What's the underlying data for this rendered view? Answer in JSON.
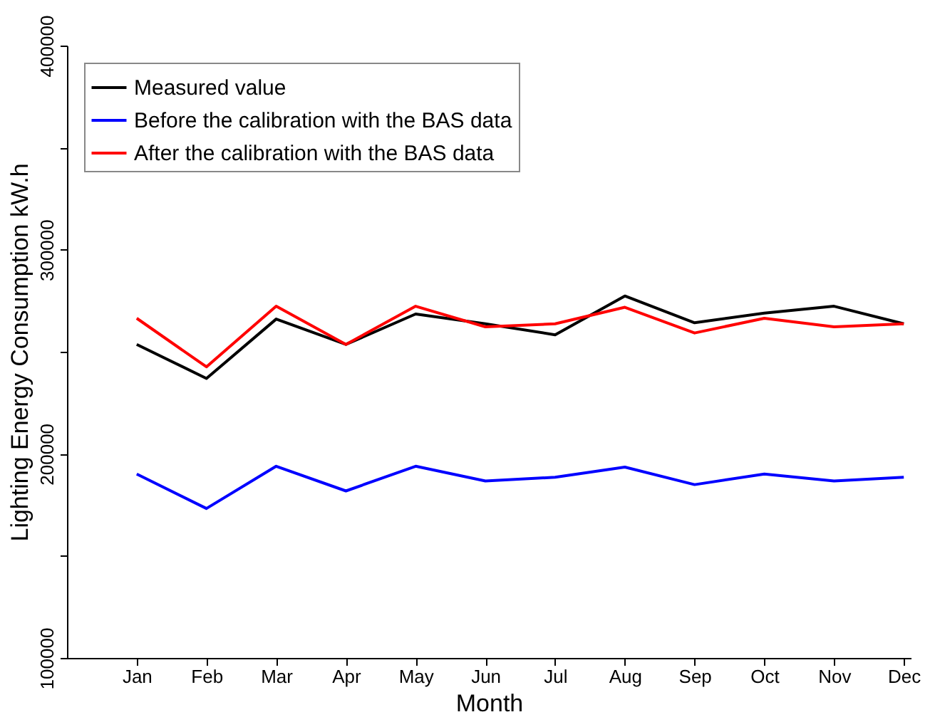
{
  "chart_data": {
    "type": "line",
    "xlabel": "Month",
    "ylabel": "Lighting Energy Consumption kW.h",
    "categories": [
      "Jan",
      "Feb",
      "Mar",
      "Apr",
      "May",
      "Jun",
      "Jul",
      "Aug",
      "Sep",
      "Oct",
      "Nov",
      "Dec"
    ],
    "series": [
      {
        "name": "Measured value",
        "color": "#000000",
        "values": [
          253600,
          236900,
          266000,
          253600,
          268500,
          263700,
          258300,
          277300,
          264200,
          268900,
          272300,
          263700
        ]
      },
      {
        "name": "Before the calibration with the BAS data",
        "color": "#0000ff",
        "values": [
          190100,
          173200,
          193900,
          181800,
          193900,
          186700,
          188500,
          193500,
          184900,
          190100,
          186700,
          188500
        ]
      },
      {
        "name": "After the calibration with the BAS data",
        "color": "#ff0000",
        "values": [
          266400,
          242600,
          272300,
          253600,
          272300,
          262200,
          263700,
          271800,
          259200,
          266400,
          262200,
          263700
        ]
      }
    ],
    "ylim": [
      100000,
      400000
    ],
    "yticks": [
      100000,
      {
        "value": 150000,
        "label": null
      },
      200000,
      {
        "value": 250000,
        "label": null
      },
      300000,
      {
        "value": 350000,
        "label": null
      },
      400000
    ],
    "grid": false,
    "legend": "top left",
    "marker": "none",
    "line_style": "solid"
  }
}
